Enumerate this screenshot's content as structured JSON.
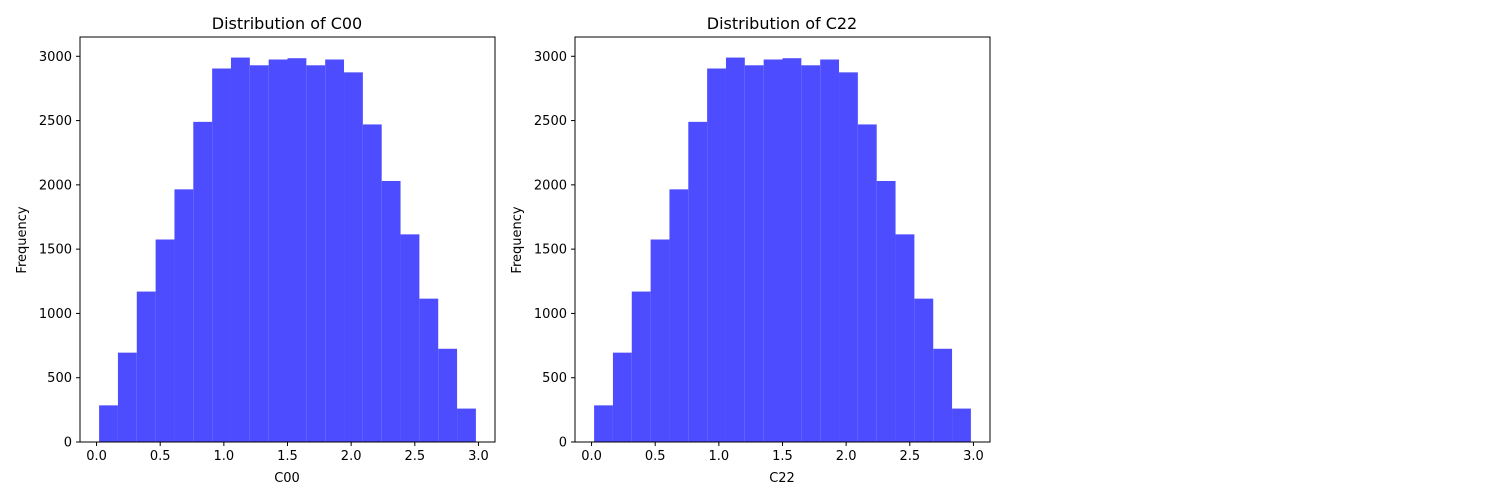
{
  "chart_data": [
    {
      "type": "bar",
      "title": "Distribution of C00",
      "xlabel": "C00",
      "ylabel": "Frequency",
      "xlim": [
        -0.13,
        3.13
      ],
      "ylim": [
        0,
        3150
      ],
      "xticks": [
        "0.0",
        "0.5",
        "1.0",
        "1.5",
        "2.0",
        "2.5",
        "3.0"
      ],
      "yticks": [
        "0",
        "500",
        "1000",
        "1500",
        "2000",
        "2500",
        "3000"
      ],
      "grid": false,
      "color": "#4d4dff",
      "bins": {
        "start": 0.02,
        "width": 0.148,
        "counts": [
          285,
          695,
          1170,
          1575,
          1965,
          2490,
          2905,
          2990,
          2930,
          2975,
          2985,
          2930,
          2975,
          2875,
          2470,
          2030,
          1615,
          1115,
          725,
          260
        ]
      }
    },
    {
      "type": "bar",
      "title": "Distribution of C22",
      "xlabel": "C22",
      "ylabel": "Frequency",
      "xlim": [
        -0.13,
        3.13
      ],
      "ylim": [
        0,
        3150
      ],
      "xticks": [
        "0.0",
        "0.5",
        "1.0",
        "1.5",
        "2.0",
        "2.5",
        "3.0"
      ],
      "yticks": [
        "0",
        "500",
        "1000",
        "1500",
        "2000",
        "2500",
        "3000"
      ],
      "grid": false,
      "color": "#4d4dff",
      "bins": {
        "start": 0.02,
        "width": 0.148,
        "counts": [
          285,
          695,
          1170,
          1575,
          1965,
          2490,
          2905,
          2990,
          2930,
          2975,
          2985,
          2930,
          2975,
          2875,
          2470,
          2030,
          1615,
          1115,
          725,
          260
        ]
      }
    }
  ]
}
